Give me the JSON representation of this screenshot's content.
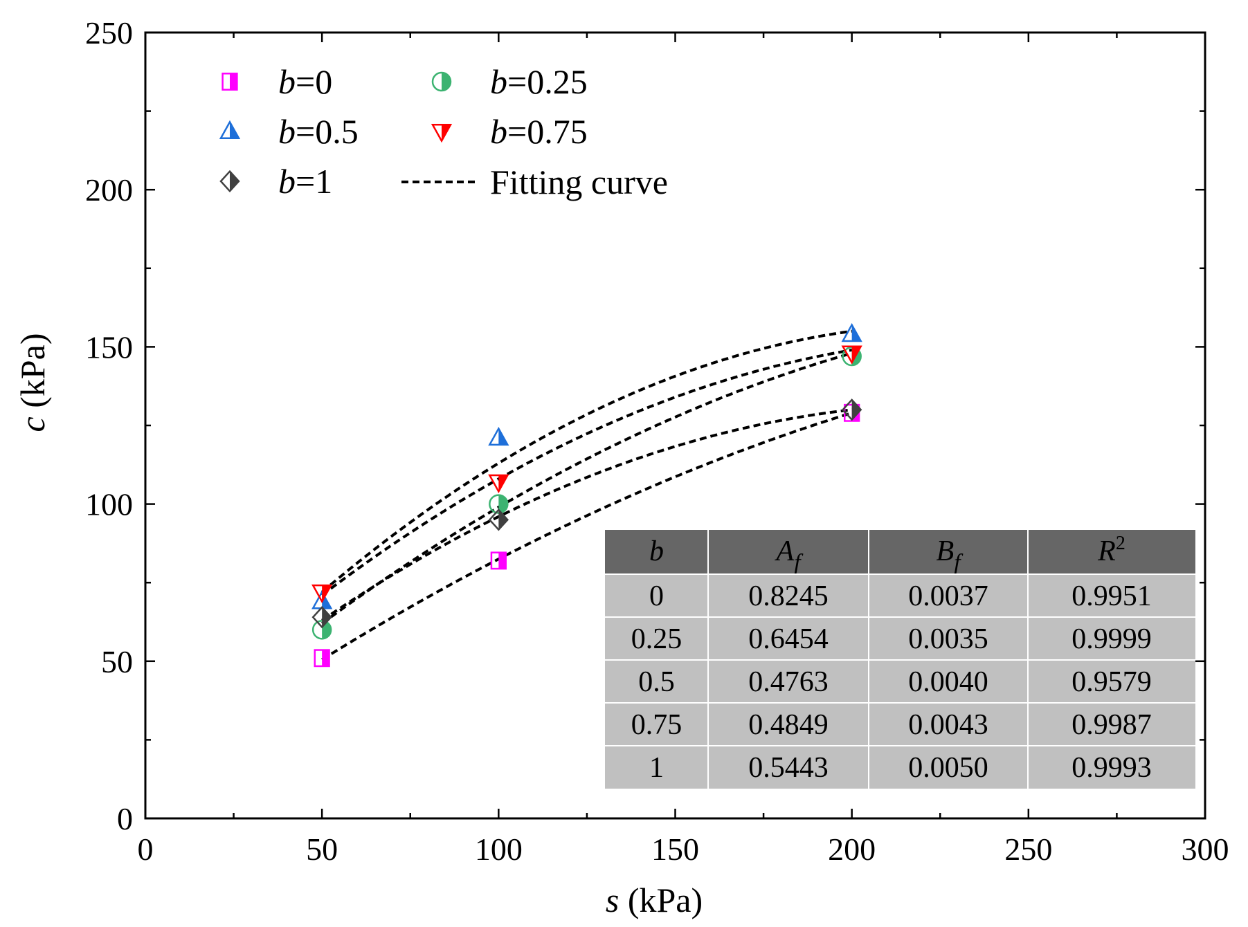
{
  "chart_data": {
    "type": "scatter",
    "title": "",
    "xlabel": "s (kPa)",
    "ylabel": "c (kPa)",
    "xlabel_var": "s",
    "xlabel_unit": " (kPa)",
    "ylabel_var": "c",
    "ylabel_unit": " (kPa)",
    "xlim": [
      0,
      300
    ],
    "ylim": [
      0,
      250
    ],
    "xticks": [
      0,
      50,
      100,
      150,
      200,
      250,
      300
    ],
    "yticks": [
      0,
      50,
      100,
      150,
      200,
      250
    ],
    "grid": false,
    "legend_position": "top-left",
    "series": [
      {
        "name": "b=0",
        "name_var": "b",
        "name_val": "=0",
        "marker": "square-half",
        "color": "#ff00ff",
        "x": [
          50,
          100,
          200
        ],
        "y": [
          51,
          82,
          129
        ],
        "fit": [
          50.5,
          82.5,
          129
        ]
      },
      {
        "name": "b=0.25",
        "name_var": "b",
        "name_val": "=0.25",
        "marker": "circle-half",
        "color": "#3cb371",
        "x": [
          50,
          100,
          200
        ],
        "y": [
          60,
          100,
          147
        ],
        "fit": [
          62,
          99,
          148
        ]
      },
      {
        "name": "b=0.5",
        "name_var": "b",
        "name_val": "=0.5",
        "marker": "triangle-up-half",
        "color": "#1e6fd9",
        "x": [
          50,
          100,
          200
        ],
        "y": [
          69,
          121,
          154
        ],
        "fit": [
          72,
          113,
          155
        ]
      },
      {
        "name": "b=0.75",
        "name_var": "b",
        "name_val": "=0.75",
        "marker": "triangle-down-half",
        "color": "#ff0000",
        "x": [
          50,
          100,
          200
        ],
        "y": [
          72,
          107,
          148
        ],
        "fit": [
          71,
          108,
          149
        ]
      },
      {
        "name": "b=1",
        "name_var": "b",
        "name_val": "=1",
        "marker": "diamond-half",
        "color": "#404040",
        "x": [
          50,
          100,
          200
        ],
        "y": [
          64,
          95,
          130
        ],
        "fit": [
          63,
          96,
          130
        ]
      }
    ],
    "fit_legend": "Fitting curve",
    "table": {
      "headers": [
        {
          "main": "b",
          "sub": "",
          "sup": ""
        },
        {
          "main": "A",
          "sub": "f",
          "sup": ""
        },
        {
          "main": "B",
          "sub": "f",
          "sup": ""
        },
        {
          "main": "R",
          "sub": "",
          "sup": "2"
        }
      ],
      "rows": [
        [
          "0",
          "0.8245",
          "0.0037",
          "0.9951"
        ],
        [
          "0.25",
          "0.6454",
          "0.0035",
          "0.9999"
        ],
        [
          "0.5",
          "0.4763",
          "0.0040",
          "0.9579"
        ],
        [
          "0.75",
          "0.4849",
          "0.0043",
          "0.9987"
        ],
        [
          "1",
          "0.5443",
          "0.0050",
          "0.9993"
        ]
      ],
      "header_bg": "#666666",
      "body_bg": "#c0c0c0"
    }
  }
}
